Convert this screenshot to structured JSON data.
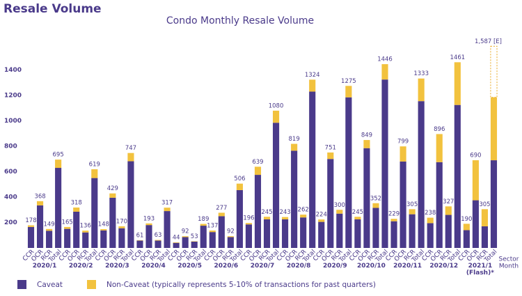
{
  "heading": "Resale Volume",
  "chart_data": {
    "type": "stacked_bar",
    "title": "Condo Monthly Resale Volume",
    "categories": [
      "CCR",
      "OCR",
      "RCR",
      "Total",
      "CCR",
      "OCR",
      "RCR",
      "Total",
      "CCR",
      "OCR",
      "RCR",
      "Total",
      "CCR",
      "OCR",
      "RCR",
      "Total",
      "CCR",
      "OCR",
      "RCR",
      "Total",
      "CCR",
      "OCR",
      "RCR",
      "Total",
      "CCR",
      "OCR",
      "RCR",
      "Total",
      "CCR",
      "OCR",
      "RCR",
      "Total",
      "CCR",
      "OCR",
      "RCR",
      "Total",
      "CCR",
      "OCR",
      "RCR",
      "Total",
      "CCR",
      "OCR",
      "RCR",
      "Total",
      "CCR",
      "OCR",
      "RCR",
      "Total",
      "CCR",
      "OCR",
      "RCR",
      "Total"
    ],
    "groups": [
      "2020/1",
      "2020/2",
      "2020/3",
      "2020/4",
      "2020/5",
      "2020/6",
      "2020/7",
      "2020/8",
      "2020/9",
      "2020/10",
      "2020/11",
      "2020/12",
      "2021/1 (Flash)*"
    ],
    "x_axis_labels": [
      "Sector",
      "Month"
    ],
    "series": [
      {
        "name": "Caveat",
        "color": "#4a3a8a",
        "values": [
          165,
          335,
          135,
          630,
          150,
          285,
          122,
          550,
          138,
          395,
          155,
          682,
          58,
          180,
          58,
          290,
          40,
          85,
          50,
          175,
          125,
          250,
          85,
          455,
          185,
          575,
          225,
          985,
          225,
          765,
          240,
          1230,
          205,
          700,
          270,
          1185,
          225,
          785,
          315,
          1325,
          210,
          680,
          265,
          1155,
          195,
          675,
          260,
          1125,
          140,
          375,
          170,
          690
        ]
      },
      {
        "name": "Non-Caveat (typically represents 5-10% of transactions for past quarters)",
        "color": "#f2c23e",
        "values": [
          13,
          33,
          14,
          65,
          15,
          33,
          14,
          69,
          10,
          34,
          15,
          65,
          3,
          13,
          5,
          27,
          4,
          7,
          3,
          14,
          12,
          27,
          7,
          51,
          11,
          64,
          20,
          95,
          18,
          54,
          22,
          94,
          19,
          51,
          30,
          90,
          20,
          64,
          37,
          121,
          19,
          119,
          40,
          178,
          43,
          221,
          67,
          336,
          50,
          315,
          135,
          495
        ]
      }
    ],
    "totals": [
      178,
      368,
      149,
      695,
      165,
      318,
      136,
      619,
      148,
      429,
      170,
      747,
      61,
      193,
      63,
      317,
      44,
      92,
      53,
      189,
      137,
      277,
      92,
      506,
      196,
      639,
      245,
      1080,
      243,
      819,
      262,
      1324,
      224,
      751,
      300,
      1275,
      245,
      849,
      352,
      1446,
      229,
      799,
      305,
      1333,
      238,
      896,
      327,
      1461,
      190,
      690,
      305,
      null
    ],
    "estimate": {
      "value": 1587,
      "label": "1,587 [E]"
    },
    "ylim": [
      0,
      1620
    ],
    "yticks": [
      200,
      400,
      600,
      800,
      1000,
      1200,
      1400
    ],
    "legend": "bottom-left"
  }
}
